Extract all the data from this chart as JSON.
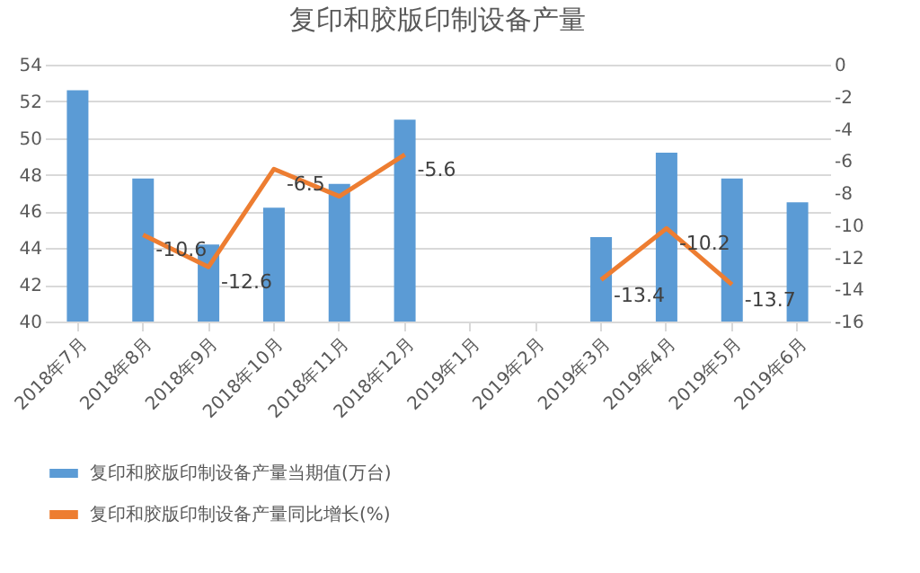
{
  "chart_data": {
    "type": "bar",
    "title": "复印和胶版印制设备产量",
    "categories": [
      "2018年7月",
      "2018年8月",
      "2018年9月",
      "2018年10月",
      "2018年11月",
      "2018年12月",
      "2019年1月",
      "2019年2月",
      "2019年3月",
      "2019年4月",
      "2019年5月",
      "2019年6月"
    ],
    "series": [
      {
        "name": "复印和胶版印制设备产量当期值(万台)",
        "color": "#5b9bd5",
        "values": [
          52.6,
          47.8,
          44.2,
          46.2,
          47.5,
          51.0,
          null,
          null,
          44.6,
          49.2,
          47.8,
          46.5
        ]
      },
      {
        "name": "复印和胶版印制设备产量同比增长(%)",
        "type": "line",
        "axis": "y2",
        "color": "#ed7d31",
        "values": [
          null,
          -10.6,
          -12.6,
          -6.5,
          -8.2,
          -5.6,
          null,
          null,
          -13.4,
          -10.2,
          -13.7,
          null
        ],
        "value_labels": [
          null,
          "-10.6",
          "-12.6",
          "-6.5",
          null,
          "-5.6",
          null,
          null,
          "-13.4",
          "-10.2",
          "-13.7",
          null
        ]
      }
    ],
    "ylim": [
      40,
      54
    ],
    "yticks": [
      40,
      42,
      44,
      46,
      48,
      50,
      52,
      54
    ],
    "y2lim": [
      -16,
      0
    ],
    "y2ticks": [
      -16,
      -14,
      -12,
      -10,
      -8,
      -6,
      -4,
      -2,
      0
    ],
    "grid": "y",
    "legend": "bottom"
  }
}
